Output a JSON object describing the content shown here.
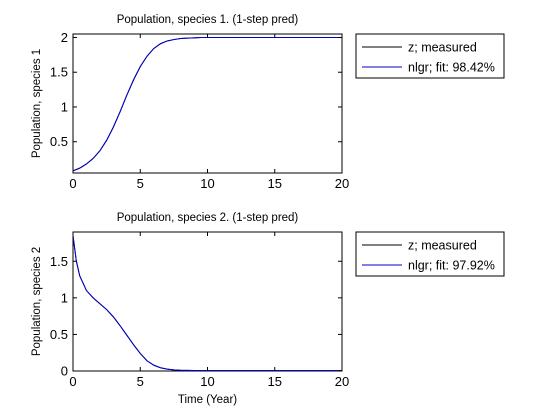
{
  "chart_data": [
    {
      "type": "line",
      "title": "Population, species 1. (1-step pred)",
      "xlabel": "",
      "ylabel": "Population, species 1",
      "xlim": [
        0,
        20
      ],
      "ylim": [
        0.05,
        2.05
      ],
      "xticks": [
        0,
        5,
        10,
        15,
        20
      ],
      "xtick_labels": [
        "0",
        "5",
        "10",
        "15",
        "20"
      ],
      "yticks": [
        0.5,
        1,
        1.5,
        2
      ],
      "ytick_labels": [
        "0.5",
        "1",
        "1.5",
        "2"
      ],
      "grid": false,
      "legend_position": "outside-right",
      "series": [
        {
          "name": "z; measured",
          "color": "#000000",
          "x": [
            0,
            0.5,
            1,
            1.5,
            2,
            2.5,
            3,
            3.5,
            4,
            4.5,
            5,
            5.5,
            6,
            6.5,
            7,
            7.5,
            8,
            8.5,
            9,
            9.5,
            10,
            11,
            12,
            13,
            14,
            15,
            16,
            17,
            18,
            19,
            20
          ],
          "y": [
            0.08,
            0.12,
            0.18,
            0.26,
            0.37,
            0.52,
            0.71,
            0.93,
            1.17,
            1.39,
            1.58,
            1.73,
            1.84,
            1.91,
            1.95,
            1.97,
            1.985,
            1.99,
            1.995,
            2.0,
            2.0,
            2.0,
            2.0,
            2.0,
            2.0,
            2.0,
            2.0,
            2.0,
            2.0,
            2.0,
            2.0
          ]
        },
        {
          "name": "nlgr; fit: 98.42%",
          "color": "#0000cc",
          "x": [
            0,
            0.5,
            1,
            1.5,
            2,
            2.5,
            3,
            3.5,
            4,
            4.5,
            5,
            5.5,
            6,
            6.5,
            7,
            7.5,
            8,
            8.5,
            9,
            9.5,
            10,
            11,
            12,
            13,
            14,
            15,
            16,
            17,
            18,
            19,
            20
          ],
          "y": [
            0.08,
            0.12,
            0.18,
            0.26,
            0.37,
            0.52,
            0.71,
            0.93,
            1.17,
            1.39,
            1.58,
            1.73,
            1.84,
            1.91,
            1.95,
            1.97,
            1.985,
            1.99,
            1.995,
            2.0,
            2.0,
            2.0,
            2.0,
            2.0,
            2.0,
            2.0,
            2.0,
            2.0,
            2.0,
            2.0,
            2.0
          ]
        }
      ]
    },
    {
      "type": "line",
      "title": "Population, species 2. (1-step pred)",
      "xlabel": "Time (Year)",
      "ylabel": "Population, species 2",
      "xlim": [
        0,
        20
      ],
      "ylim": [
        0,
        1.9
      ],
      "xticks": [
        0,
        5,
        10,
        15,
        20
      ],
      "xtick_labels": [
        "0",
        "5",
        "10",
        "15",
        "20"
      ],
      "yticks": [
        0,
        0.5,
        1,
        1.5
      ],
      "ytick_labels": [
        "0",
        "0.5",
        "1",
        "1.5"
      ],
      "grid": false,
      "legend_position": "outside-right",
      "series": [
        {
          "name": "z; measured",
          "color": "#000000",
          "x": [
            0,
            0.25,
            0.5,
            1,
            1.5,
            2,
            2.5,
            3,
            3.5,
            4,
            4.5,
            5,
            5.5,
            6,
            6.5,
            7,
            7.5,
            8,
            9,
            10,
            12,
            14,
            16,
            18,
            20
          ],
          "y": [
            1.85,
            1.5,
            1.3,
            1.1,
            1.0,
            0.92,
            0.84,
            0.74,
            0.62,
            0.49,
            0.36,
            0.24,
            0.14,
            0.08,
            0.045,
            0.025,
            0.015,
            0.01,
            0.006,
            0.005,
            0.005,
            0.005,
            0.005,
            0.005,
            0.005
          ]
        },
        {
          "name": "nlgr; fit: 97.92%",
          "color": "#0000cc",
          "x": [
            0,
            0.25,
            0.5,
            1,
            1.5,
            2,
            2.5,
            3,
            3.5,
            4,
            4.5,
            5,
            5.5,
            6,
            6.5,
            7,
            7.5,
            8,
            9,
            10,
            12,
            14,
            16,
            18,
            20
          ],
          "y": [
            1.85,
            1.5,
            1.3,
            1.1,
            1.0,
            0.92,
            0.84,
            0.74,
            0.62,
            0.49,
            0.36,
            0.24,
            0.14,
            0.08,
            0.045,
            0.025,
            0.015,
            0.01,
            0.006,
            0.005,
            0.005,
            0.005,
            0.005,
            0.005,
            0.005
          ]
        }
      ]
    }
  ]
}
